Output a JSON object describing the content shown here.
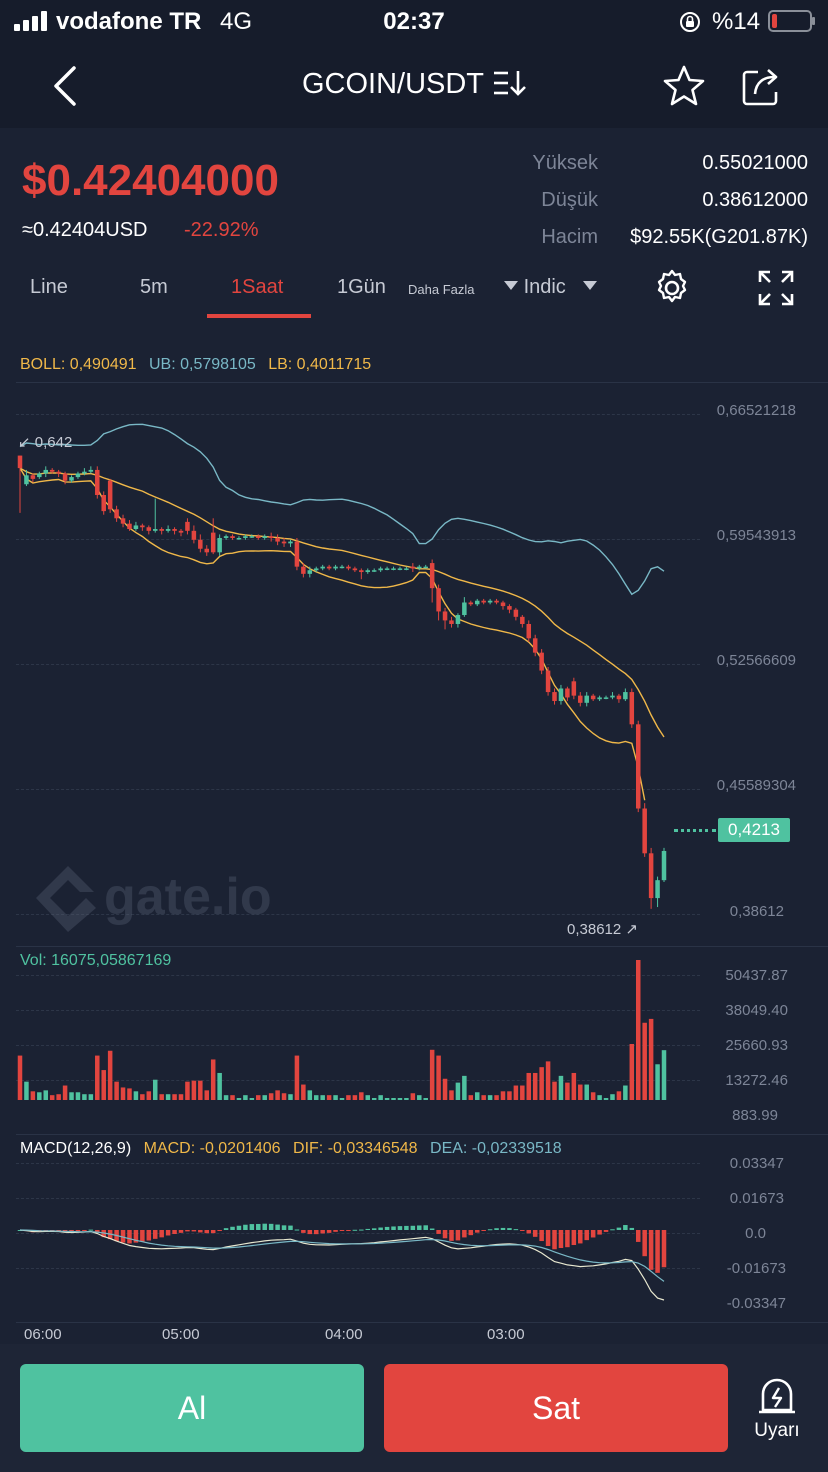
{
  "status_bar": {
    "carrier": "vodafone TR",
    "network": "4G",
    "time": "02:37",
    "battery": "%14",
    "battery_level": 0.14
  },
  "nav": {
    "pair": "GCOIN/USDT"
  },
  "price": {
    "main": "$0.42404000",
    "usd": "≈0.42404USD",
    "change": "-22.92%",
    "high_label": "Yüksek",
    "high_value": "0.55021000",
    "low_label": "Düşük",
    "low_value": "0.38612000",
    "volume_label": "Hacim",
    "volume_value": "$92.55K(G201.87K)"
  },
  "tabs": {
    "line": "Line",
    "m5": "5m",
    "h1": "1Saat",
    "d1": "1Gün",
    "more": "Daha Fazla",
    "indic": "Indic"
  },
  "indicators": {
    "boll": "BOLL: 0,490491",
    "ub": "UB: 0,5798105",
    "lb": "LB: 0,4011715",
    "vol": "Vol: 16075,05867169",
    "macd_name": "MACD(12,26,9)",
    "macd": "MACD: -0,0201406",
    "dif": "DIF: -0,03346548",
    "dea": "DEA: -0,02339518"
  },
  "chart_data": {
    "type": "candlestick",
    "price_axis": [
      "0,66521218",
      "0,59543913",
      "0,52566609",
      "0,45589304",
      "0,38612"
    ],
    "volume_axis": [
      "50437.87",
      "38049.40",
      "25660.93",
      "13272.46",
      "883.99"
    ],
    "macd_axis": [
      "0.03347",
      "0.01673",
      "0.0",
      "-0.01673",
      "-0.03347"
    ],
    "time_axis": [
      "06:00",
      "05:00",
      "04:00",
      "03:00"
    ],
    "high_marker": "0,642",
    "low_marker": "0,38612",
    "current_price": "0,4213",
    "ylim": [
      0.38612,
      0.66521218
    ],
    "candles": [
      [
        0.642,
        0.635,
        0.642,
        0.61
      ],
      [
        0.626,
        0.631,
        0.634,
        0.625
      ],
      [
        0.631,
        0.629,
        0.632,
        0.627
      ],
      [
        0.63,
        0.632,
        0.633,
        0.629
      ],
      [
        0.632,
        0.634,
        0.636,
        0.63
      ],
      [
        0.634,
        0.633,
        0.635,
        0.632
      ],
      [
        0.633,
        0.632,
        0.634,
        0.63
      ],
      [
        0.632,
        0.628,
        0.633,
        0.626
      ],
      [
        0.628,
        0.63,
        0.631,
        0.627
      ],
      [
        0.63,
        0.632,
        0.633,
        0.629
      ],
      [
        0.632,
        0.633,
        0.635,
        0.631
      ],
      [
        0.633,
        0.634,
        0.636,
        0.632
      ],
      [
        0.634,
        0.62,
        0.636,
        0.618
      ],
      [
        0.62,
        0.611,
        0.622,
        0.609
      ],
      [
        0.628,
        0.612,
        0.629,
        0.61
      ],
      [
        0.612,
        0.607,
        0.614,
        0.605
      ],
      [
        0.607,
        0.604,
        0.609,
        0.602
      ],
      [
        0.604,
        0.601,
        0.606,
        0.6
      ],
      [
        0.601,
        0.603,
        0.605,
        0.6
      ],
      [
        0.603,
        0.602,
        0.604,
        0.6
      ],
      [
        0.602,
        0.6,
        0.603,
        0.598
      ],
      [
        0.6,
        0.601,
        0.618,
        0.599
      ],
      [
        0.601,
        0.6,
        0.602,
        0.598
      ],
      [
        0.6,
        0.601,
        0.603,
        0.599
      ],
      [
        0.601,
        0.6,
        0.602,
        0.598
      ],
      [
        0.6,
        0.599,
        0.601,
        0.597
      ],
      [
        0.605,
        0.6,
        0.607,
        0.598
      ],
      [
        0.6,
        0.595,
        0.603,
        0.593
      ],
      [
        0.595,
        0.59,
        0.598,
        0.588
      ],
      [
        0.59,
        0.588,
        0.592,
        0.586
      ],
      [
        0.599,
        0.588,
        0.607,
        0.587
      ],
      [
        0.588,
        0.596,
        0.598,
        0.586
      ],
      [
        0.596,
        0.597,
        0.598,
        0.595
      ],
      [
        0.597,
        0.596,
        0.598,
        0.595
      ],
      [
        0.596,
        0.596,
        0.597,
        0.595
      ],
      [
        0.596,
        0.597,
        0.598,
        0.595
      ],
      [
        0.597,
        0.597,
        0.598,
        0.596
      ],
      [
        0.597,
        0.596,
        0.598,
        0.595
      ],
      [
        0.596,
        0.597,
        0.598,
        0.595
      ],
      [
        0.597,
        0.596,
        0.599,
        0.594
      ],
      [
        0.596,
        0.594,
        0.598,
        0.592
      ],
      [
        0.594,
        0.593,
        0.596,
        0.591
      ],
      [
        0.593,
        0.594,
        0.595,
        0.591
      ],
      [
        0.594,
        0.58,
        0.596,
        0.578
      ],
      [
        0.58,
        0.576,
        0.582,
        0.574
      ],
      [
        0.576,
        0.578,
        0.58,
        0.574
      ],
      [
        0.578,
        0.579,
        0.58,
        0.577
      ],
      [
        0.579,
        0.58,
        0.581,
        0.578
      ],
      [
        0.58,
        0.579,
        0.581,
        0.578
      ],
      [
        0.579,
        0.58,
        0.581,
        0.578
      ],
      [
        0.58,
        0.58,
        0.581,
        0.579
      ],
      [
        0.58,
        0.579,
        0.581,
        0.578
      ],
      [
        0.579,
        0.578,
        0.58,
        0.577
      ],
      [
        0.578,
        0.577,
        0.579,
        0.573
      ],
      [
        0.577,
        0.578,
        0.579,
        0.576
      ],
      [
        0.578,
        0.578,
        0.579,
        0.577
      ],
      [
        0.578,
        0.579,
        0.58,
        0.577
      ],
      [
        0.579,
        0.579,
        0.58,
        0.578
      ],
      [
        0.579,
        0.579,
        0.58,
        0.578
      ],
      [
        0.579,
        0.579,
        0.58,
        0.578
      ],
      [
        0.579,
        0.579,
        0.58,
        0.578
      ],
      [
        0.58,
        0.579,
        0.582,
        0.577
      ],
      [
        0.579,
        0.58,
        0.581,
        0.578
      ],
      [
        0.58,
        0.58,
        0.581,
        0.579
      ],
      [
        0.582,
        0.568,
        0.584,
        0.56
      ],
      [
        0.568,
        0.555,
        0.57,
        0.55
      ],
      [
        0.555,
        0.55,
        0.557,
        0.545
      ],
      [
        0.55,
        0.548,
        0.552,
        0.546
      ],
      [
        0.548,
        0.553,
        0.554,
        0.546
      ],
      [
        0.553,
        0.56,
        0.563,
        0.552
      ],
      [
        0.56,
        0.559,
        0.561,
        0.558
      ],
      [
        0.559,
        0.561,
        0.562,
        0.558
      ],
      [
        0.561,
        0.56,
        0.562,
        0.559
      ],
      [
        0.56,
        0.561,
        0.562,
        0.559
      ],
      [
        0.561,
        0.56,
        0.562,
        0.559
      ],
      [
        0.56,
        0.558,
        0.561,
        0.556
      ],
      [
        0.558,
        0.556,
        0.559,
        0.554
      ],
      [
        0.556,
        0.552,
        0.557,
        0.55
      ],
      [
        0.552,
        0.548,
        0.553,
        0.546
      ],
      [
        0.548,
        0.54,
        0.55,
        0.538
      ],
      [
        0.54,
        0.532,
        0.542,
        0.53
      ],
      [
        0.532,
        0.522,
        0.534,
        0.52
      ],
      [
        0.522,
        0.51,
        0.524,
        0.508
      ],
      [
        0.51,
        0.505,
        0.512,
        0.503
      ],
      [
        0.505,
        0.512,
        0.514,
        0.503
      ],
      [
        0.512,
        0.507,
        0.513,
        0.505
      ],
      [
        0.516,
        0.508,
        0.518,
        0.506
      ],
      [
        0.508,
        0.504,
        0.51,
        0.502
      ],
      [
        0.504,
        0.508,
        0.51,
        0.502
      ],
      [
        0.508,
        0.506,
        0.509,
        0.505
      ],
      [
        0.506,
        0.507,
        0.508,
        0.505
      ],
      [
        0.507,
        0.507,
        0.508,
        0.506
      ],
      [
        0.507,
        0.508,
        0.51,
        0.506
      ],
      [
        0.508,
        0.506,
        0.509,
        0.504
      ],
      [
        0.506,
        0.51,
        0.512,
        0.505
      ],
      [
        0.51,
        0.492,
        0.512,
        0.49
      ],
      [
        0.492,
        0.445,
        0.494,
        0.443
      ],
      [
        0.445,
        0.42,
        0.448,
        0.418
      ],
      [
        0.42,
        0.395,
        0.423,
        0.389
      ],
      [
        0.395,
        0.405,
        0.407,
        0.39
      ],
      [
        0.405,
        0.4213,
        0.423,
        0.404
      ]
    ]
  },
  "bottom": {
    "buy": "Al",
    "sell": "Sat",
    "alert": "Uyarı"
  },
  "colors": {
    "up": "#4fc2a0",
    "down": "#e2453f",
    "boll_mid": "#f0b849",
    "boll_band": "#79b8c6",
    "macd_label": "#f0b849",
    "dea_label": "#79b8c6"
  }
}
